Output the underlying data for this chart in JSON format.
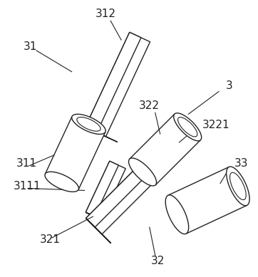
{
  "bg_color": "#ffffff",
  "line_color": "#222222",
  "label_color": "#222222",
  "fig_width": 3.62,
  "fig_height": 3.89,
  "dpi": 100,
  "label_fontsize": 11,
  "lw": 1.0
}
